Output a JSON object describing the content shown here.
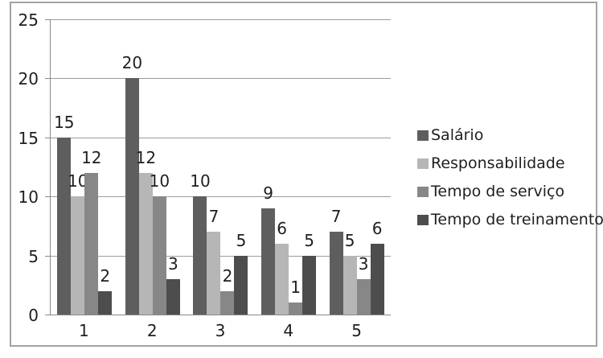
{
  "chart_data": {
    "type": "bar",
    "title": "",
    "categories": [
      "1",
      "2",
      "3",
      "4",
      "5"
    ],
    "series": [
      {
        "name": "Salário",
        "color": "#5e5e5e",
        "values": [
          15,
          20,
          10,
          9,
          7
        ]
      },
      {
        "name": "Responsabilidade",
        "color": "#b6b6b6",
        "values": [
          10,
          12,
          7,
          6,
          5
        ]
      },
      {
        "name": "Tempo de serviço",
        "color": "#878787",
        "values": [
          12,
          10,
          2,
          1,
          3
        ]
      },
      {
        "name": "Tempo de treinamento",
        "color": "#4d4d4d",
        "values": [
          2,
          3,
          5,
          5,
          6
        ]
      }
    ],
    "y_axis": {
      "min": 0,
      "max": 25,
      "tick_step": 5,
      "ticks": [
        0,
        5,
        10,
        15,
        20,
        25
      ]
    },
    "x_axis": {
      "tick_labels": [
        "1",
        "2",
        "3",
        "4",
        "5"
      ]
    },
    "grid": true,
    "data_labels": "outside-end",
    "legend_position": "right"
  },
  "style": {
    "grid_color": "#9c9c9c",
    "axis_color": "#8a8a8a",
    "frame_color": "#a3a3a3",
    "text_color": "#1f1f1f",
    "background": "#ffffff"
  }
}
